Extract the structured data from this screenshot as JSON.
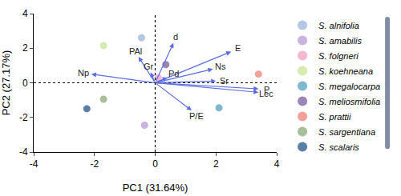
{
  "chart_data": {
    "type": "scatter",
    "x_label": "PC1 (31.64%)",
    "y_label": "PC2 (27.17%)",
    "xlim": [
      -4,
      4
    ],
    "xticks": [
      -4,
      -2,
      0,
      2,
      4
    ],
    "ylim": [
      -4,
      4
    ],
    "yticks": [
      -4,
      -2,
      0,
      2,
      4
    ],
    "grid": false,
    "legend": "right",
    "series": [
      {
        "name": "S. alnifolia",
        "color": "#b4c7e7",
        "x": [
          -0.45
        ],
        "y": [
          2.6
        ]
      },
      {
        "name": "S. amabilis",
        "color": "#c9b3e0",
        "x": [
          -0.35
        ],
        "y": [
          -2.45
        ]
      },
      {
        "name": "S. folgneri",
        "color": "#f7b6d2",
        "x": [
          0.1
        ],
        "y": [
          0.3
        ]
      },
      {
        "name": "S. koehneana",
        "color": "#d4edae",
        "x": [
          -1.7
        ],
        "y": [
          2.15
        ]
      },
      {
        "name": "S. megalocarpa",
        "color": "#7fb8cf",
        "x": [
          2.1
        ],
        "y": [
          -1.45
        ]
      },
      {
        "name": "S. meliosmifolia",
        "color": "#9c86b8",
        "x": [
          0.35
        ],
        "y": [
          1.05
        ]
      },
      {
        "name": "S. prattii",
        "color": "#f4a09a",
        "x": [
          3.4
        ],
        "y": [
          0.5
        ]
      },
      {
        "name": "S. sargentiana",
        "color": "#a9bf9a",
        "x": [
          -1.7
        ],
        "y": [
          -0.95
        ]
      },
      {
        "name": "S. scalaris",
        "color": "#5a7fa6",
        "x": [
          -2.25
        ],
        "y": [
          -1.5
        ]
      }
    ],
    "loadings": {
      "color": "#5b6ee1",
      "labels": [
        "d",
        "PAl",
        "Gr",
        "E",
        "Ns",
        "Pd",
        "Sr",
        "P",
        "Lec",
        "P/E",
        "Np"
      ],
      "x": [
        0.6,
        -0.55,
        -0.15,
        2.5,
        1.9,
        0.4,
        2.0,
        3.4,
        3.4,
        1.2,
        -2.1
      ],
      "y": [
        2.3,
        1.5,
        0.6,
        1.8,
        0.8,
        0.3,
        0.1,
        -0.35,
        -0.55,
        -1.6,
        0.5
      ]
    }
  }
}
